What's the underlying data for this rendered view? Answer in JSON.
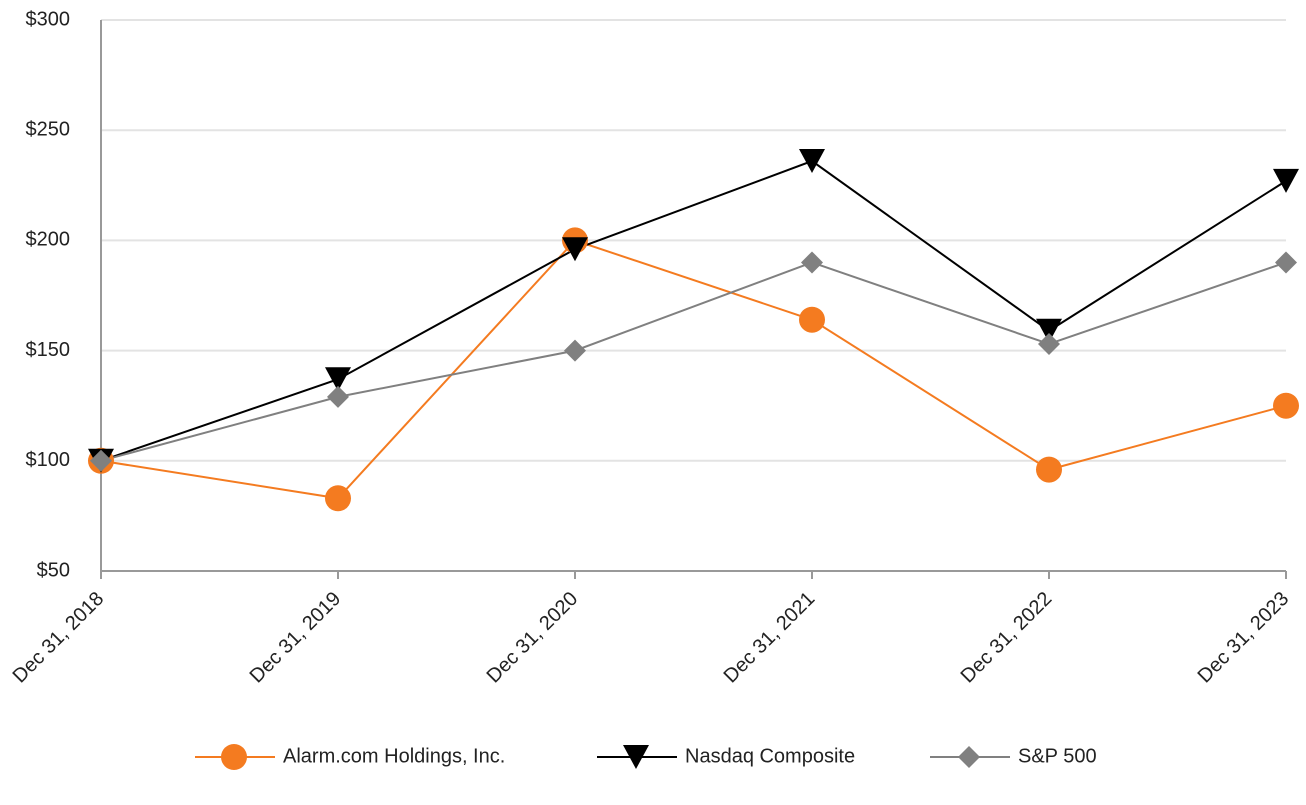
{
  "chart_data": {
    "type": "line",
    "categories": [
      "Dec 31, 2018",
      "Dec 31, 2019",
      "Dec 31, 2020",
      "Dec 31, 2021",
      "Dec 31, 2022",
      "Dec 31, 2023"
    ],
    "series": [
      {
        "name": "Alarm.com Holdings, Inc.",
        "color": "#f47b20",
        "marker": "circle",
        "values": [
          100,
          83,
          200,
          164,
          96,
          125
        ]
      },
      {
        "name": "Nasdaq Composite",
        "color": "#000000",
        "marker": "triangle-down",
        "values": [
          100,
          137,
          196,
          236,
          159,
          227
        ]
      },
      {
        "name": "S&P 500",
        "color": "#808080",
        "marker": "diamond",
        "values": [
          100,
          129,
          150,
          190,
          153,
          190
        ]
      }
    ],
    "ylim": [
      50,
      300
    ],
    "yticks": [
      {
        "value": 50,
        "label": "$50"
      },
      {
        "value": 100,
        "label": "$100"
      },
      {
        "value": 150,
        "label": "$150"
      },
      {
        "value": 200,
        "label": "$200"
      },
      {
        "value": 250,
        "label": "$250"
      },
      {
        "value": 300,
        "label": "$300"
      }
    ],
    "grid": true,
    "legend": "bottom"
  }
}
